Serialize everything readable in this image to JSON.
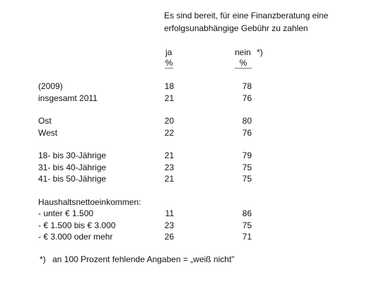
{
  "header": {
    "lines": [
      "Es sind bereit, für eine Finanzberatung eine",
      "erfolgsunabhängige Gebühr zu zahlen"
    ]
  },
  "columns": [
    {
      "label": "ja",
      "unit": "%"
    },
    {
      "label": "nein",
      "note": "*)",
      "unit": "%"
    }
  ],
  "groups": [
    {
      "rows": [
        {
          "label": "(2009)",
          "values": [
            18,
            78
          ]
        },
        {
          "label": "insgesamt 2011",
          "values": [
            21,
            76
          ]
        }
      ]
    },
    {
      "rows": [
        {
          "label": "Ost",
          "values": [
            20,
            80
          ]
        },
        {
          "label": "West",
          "values": [
            22,
            76
          ]
        }
      ]
    },
    {
      "rows": [
        {
          "label": "18- bis 30-Jährige",
          "values": [
            21,
            79
          ]
        },
        {
          "label": "31- bis 40-Jährige",
          "values": [
            23,
            75
          ]
        },
        {
          "label": "41- bis 50-Jährige",
          "values": [
            21,
            75
          ]
        }
      ]
    },
    {
      "heading": "Haushaltsnettoeinkommen:",
      "rows": [
        {
          "label": "- unter € 1.500",
          "values": [
            11,
            86
          ]
        },
        {
          "label": "- € 1.500 bis € 3.000",
          "values": [
            23,
            75
          ]
        },
        {
          "label": "- € 3.000 oder mehr",
          "values": [
            26,
            71
          ]
        }
      ]
    }
  ],
  "footnote": {
    "marker": "*)",
    "text": "an 100 Prozent fehlende Angaben = „weiß nicht\""
  }
}
